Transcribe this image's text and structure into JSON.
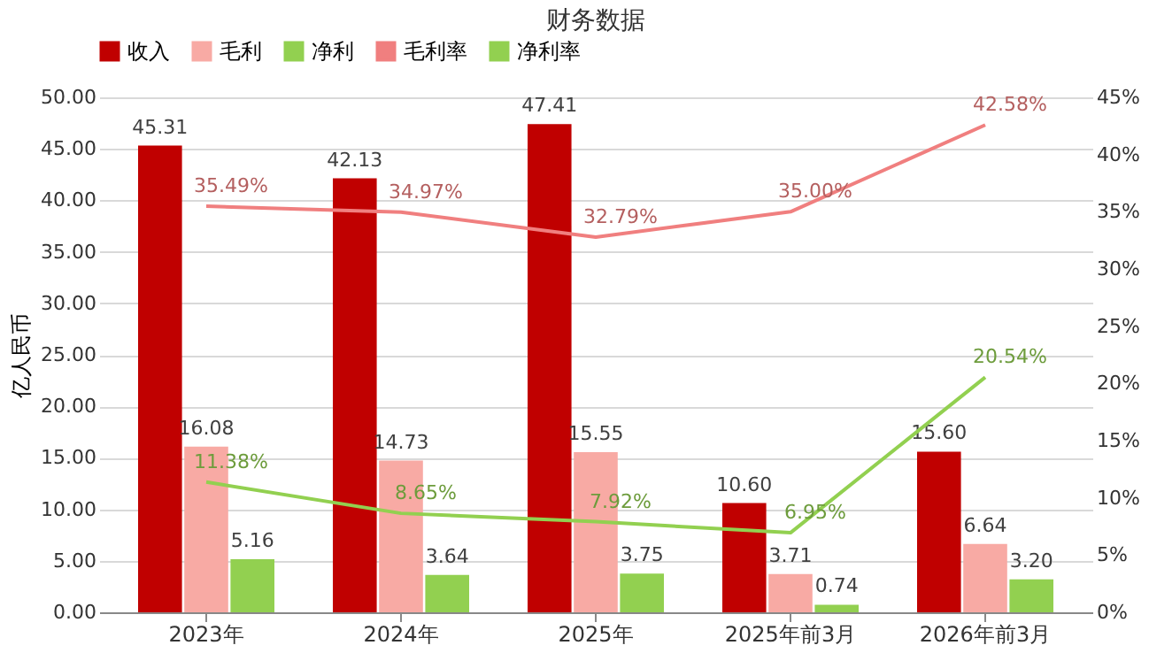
{
  "chart_data": {
    "type": "bar",
    "title": "财务数据",
    "ylabel": "亿人民币",
    "categories": [
      "2023年",
      "2024年",
      "2025年",
      "2025年前3月",
      "2026年前3月"
    ],
    "series": [
      {
        "name": "收入",
        "color": "#c00000",
        "values": [
          45.31,
          42.13,
          47.41,
          10.6,
          15.6
        ],
        "value_labels": [
          "45.31",
          "42.13",
          "47.41",
          "10.60",
          "15.60"
        ]
      },
      {
        "name": "毛利",
        "color": "#f8aaa4",
        "values": [
          16.08,
          14.73,
          15.55,
          3.71,
          6.64
        ],
        "value_labels": [
          "16.08",
          "14.73",
          "15.55",
          "3.71",
          "6.64"
        ]
      },
      {
        "name": "净利",
        "color": "#92d050",
        "values": [
          5.16,
          3.64,
          3.75,
          0.74,
          3.2
        ],
        "value_labels": [
          "5.16",
          "3.64",
          "3.75",
          "0.74",
          "3.20"
        ]
      },
      {
        "name": "毛利率",
        "type": "line",
        "axis": "y2",
        "color": "#f07f7f",
        "values": [
          35.49,
          34.97,
          32.79,
          35.0,
          42.58
        ],
        "value_labels": [
          "35.49%",
          "34.97%",
          "32.79%",
          "35.00%",
          "42.58%"
        ]
      },
      {
        "name": "净利率",
        "type": "line",
        "axis": "y2",
        "color": "#92d050",
        "values": [
          11.38,
          8.65,
          7.92,
          6.95,
          20.54
        ],
        "value_labels": [
          "11.38%",
          "8.65%",
          "7.92%",
          "6.95%",
          "20.54%"
        ]
      }
    ],
    "ylim": [
      0,
      50
    ],
    "yticks": [
      {
        "value": 0,
        "label": "0.00"
      },
      {
        "value": 5,
        "label": "5.00"
      },
      {
        "value": 10,
        "label": "10.00"
      },
      {
        "value": 15,
        "label": "15.00"
      },
      {
        "value": 20,
        "label": "20.00"
      },
      {
        "value": 25,
        "label": "25.00"
      },
      {
        "value": 30,
        "label": "30.00"
      },
      {
        "value": 35,
        "label": "35.00"
      },
      {
        "value": 40,
        "label": "40.00"
      },
      {
        "value": 45,
        "label": "45.00"
      },
      {
        "value": 50,
        "label": "50.00"
      }
    ],
    "y2lim": [
      0,
      45
    ],
    "y2ticks": [
      {
        "value": 0,
        "label": "0%"
      },
      {
        "value": 5,
        "label": "5%"
      },
      {
        "value": 10,
        "label": "10%"
      },
      {
        "value": 15,
        "label": "15%"
      },
      {
        "value": 20,
        "label": "20%"
      },
      {
        "value": 25,
        "label": "25%"
      },
      {
        "value": 30,
        "label": "30%"
      },
      {
        "value": 35,
        "label": "35%"
      },
      {
        "value": 40,
        "label": "40%"
      },
      {
        "value": 45,
        "label": "45%"
      }
    ],
    "grid": "y",
    "legend": "top",
    "marker": "none",
    "line_style": "solid"
  }
}
